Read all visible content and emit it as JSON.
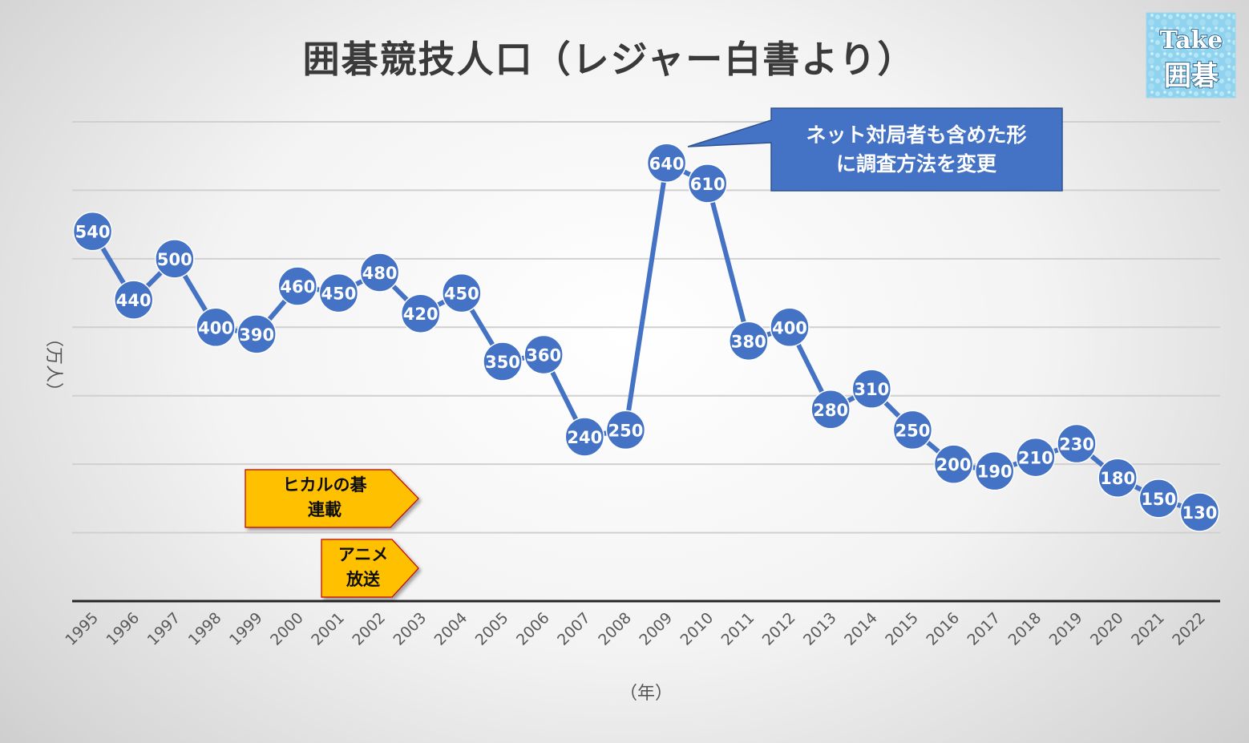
{
  "chart_data": {
    "type": "line",
    "title": "囲碁競技人口（レジャー白書より）",
    "xlabel": "（年）",
    "ylabel": "（万人）",
    "ylim": [
      0,
      700
    ],
    "grid": true,
    "x": [
      "1995",
      "1996",
      "1997",
      "1998",
      "1999",
      "2000",
      "2001",
      "2002",
      "2003",
      "2004",
      "2005",
      "2006",
      "2007",
      "2008",
      "2009",
      "2010",
      "2011",
      "2012",
      "2013",
      "2014",
      "2015",
      "2016",
      "2017",
      "2018",
      "2019",
      "2020",
      "2021",
      "2022"
    ],
    "values": [
      540,
      440,
      500,
      400,
      390,
      460,
      450,
      480,
      420,
      450,
      350,
      360,
      240,
      250,
      640,
      610,
      380,
      400,
      280,
      310,
      250,
      200,
      190,
      210,
      230,
      180,
      150,
      130
    ],
    "data_labels": [
      "540",
      "440",
      "500",
      "400",
      "390",
      "460",
      "450",
      "480",
      "420",
      "450",
      "350",
      "360",
      "240",
      "250",
      "640",
      "610",
      "380",
      "400",
      "280",
      "310",
      "250",
      "200",
      "190",
      "210",
      "230",
      "180",
      "150",
      "130"
    ],
    "line_color": "#4472C4"
  },
  "annotations": {
    "callout": {
      "lines": [
        "ネット対局者も含めた形",
        "に調査方法を変更"
      ],
      "fill": "#4472C4"
    },
    "hikaru_arrow": {
      "lines": [
        "ヒカルの碁",
        "連載"
      ],
      "fill": "#FFC000"
    },
    "anime_arrow": {
      "lines": [
        "アニメ",
        "放送"
      ],
      "fill": "#FFC000"
    }
  },
  "logo": {
    "line1": "Take",
    "line2": "囲碁"
  }
}
